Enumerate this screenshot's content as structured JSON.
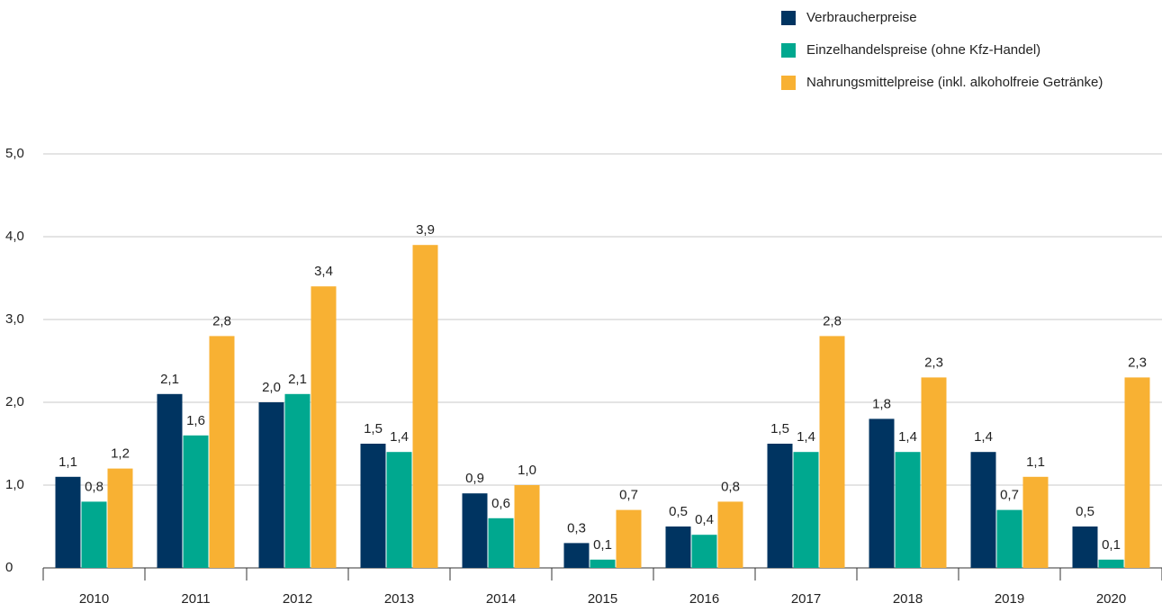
{
  "chart_data": {
    "type": "bar",
    "categories": [
      "2010",
      "2011",
      "2012",
      "2013",
      "2014",
      "2015",
      "2016",
      "2017",
      "2018",
      "2019",
      "2020"
    ],
    "series": [
      {
        "name": "Verbraucherpreise",
        "color": "#003461",
        "values": [
          1.1,
          2.1,
          2.0,
          1.5,
          0.9,
          0.3,
          0.5,
          1.5,
          1.8,
          1.4,
          0.5
        ],
        "value_labels": [
          "1,1",
          "2,1",
          "2,0",
          "1,5",
          "0,9",
          "0,3",
          "0,5",
          "1,5",
          "1,8",
          "1,4",
          "0,5"
        ]
      },
      {
        "name": "Einzelhandelspreise (ohne Kfz-Handel)",
        "color": "#00a88f",
        "values": [
          0.8,
          1.6,
          2.1,
          1.4,
          0.6,
          0.1,
          0.4,
          1.4,
          1.4,
          0.7,
          0.1
        ],
        "value_labels": [
          "0,8",
          "1,6",
          "2,1",
          "1,4",
          "0,6",
          "0,1",
          "0,4",
          "1,4",
          "1,4",
          "0,7",
          "0,1"
        ]
      },
      {
        "name": "Nahrungsmittelpreise (inkl. alkoholfreie Getränke)",
        "color": "#f8b133",
        "values": [
          1.2,
          2.8,
          3.4,
          3.9,
          1.0,
          0.7,
          0.8,
          2.8,
          2.3,
          1.1,
          2.3
        ],
        "value_labels": [
          "1,2",
          "2,8",
          "3,4",
          "3,9",
          "1,0",
          "0,7",
          "0,8",
          "2,8",
          "2,3",
          "1,1",
          "2,3"
        ]
      }
    ],
    "ylim": [
      0,
      5
    ],
    "yticks": [
      0,
      {
        "value": 1,
        "label": "1,0"
      },
      {
        "value": 2,
        "label": "2,0"
      },
      {
        "value": 3,
        "label": "3,0"
      },
      {
        "value": 4,
        "label": "4,0"
      },
      {
        "value": 5,
        "label": "5,0"
      }
    ],
    "grid": true,
    "legend": "top-right"
  }
}
